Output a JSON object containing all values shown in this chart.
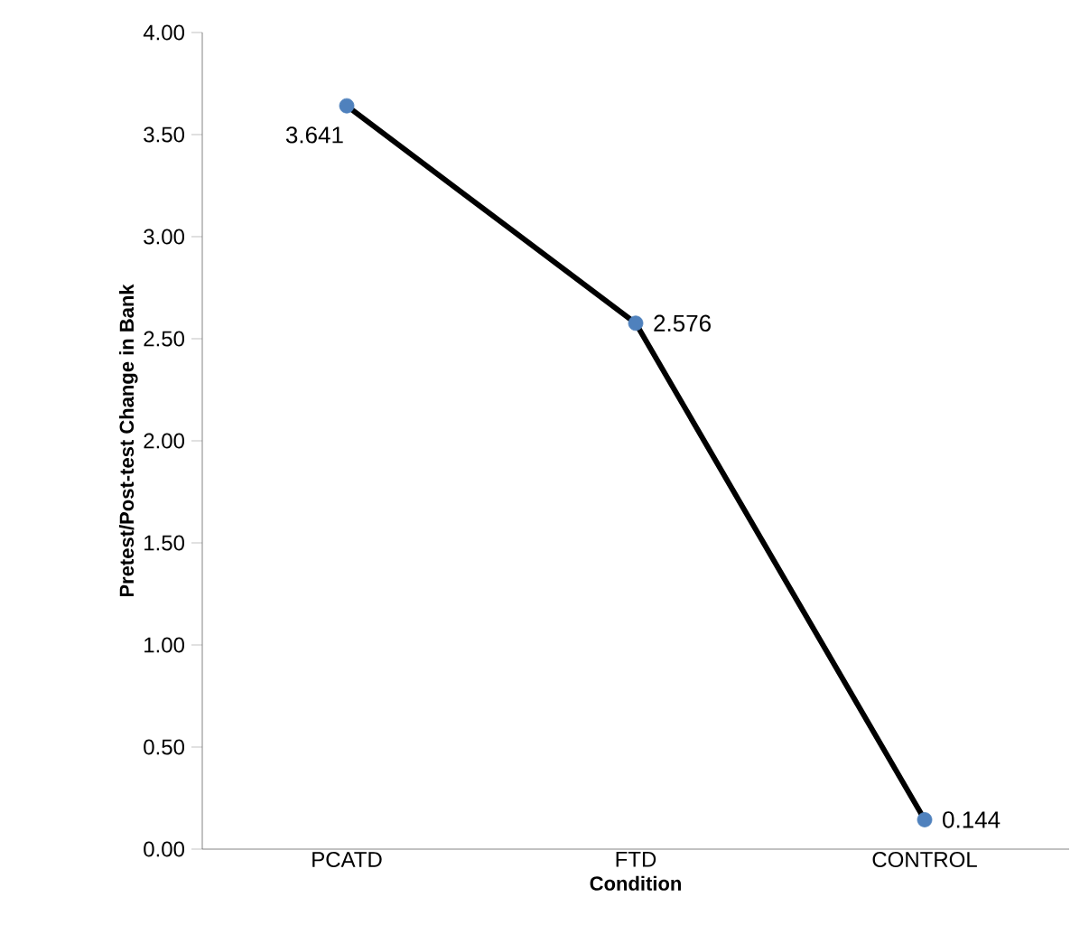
{
  "chart_data": {
    "type": "line",
    "xlabel": "Condition",
    "ylabel": "Pretest/Post-test Change in Bank",
    "categories": [
      "PCATD",
      "FTD",
      "CONTROL"
    ],
    "series": [
      {
        "color": "#000000",
        "colors": [
          "#4f81bd",
          "#4f81bd",
          "#4f81bd"
        ],
        "values": [
          3.641,
          2.576,
          0.144
        ],
        "value_labels": [
          "3.641",
          "2.576",
          "0.144"
        ]
      }
    ],
    "ylim": [
      0,
      4
    ],
    "yticks": [
      {
        "value": 0,
        "label": "0.00"
      },
      {
        "value": 0.5,
        "label": "0.50"
      },
      {
        "value": 1,
        "label": "1.00"
      },
      {
        "value": 1.5,
        "label": "1.50"
      },
      {
        "value": 2,
        "label": "2.00"
      },
      {
        "value": 2.5,
        "label": "2.50"
      },
      {
        "value": 3,
        "label": "3.00"
      },
      {
        "value": 3.5,
        "label": "3.50"
      },
      {
        "value": 4,
        "label": "4.00"
      }
    ],
    "marker": "circle",
    "line_style": "solid"
  }
}
